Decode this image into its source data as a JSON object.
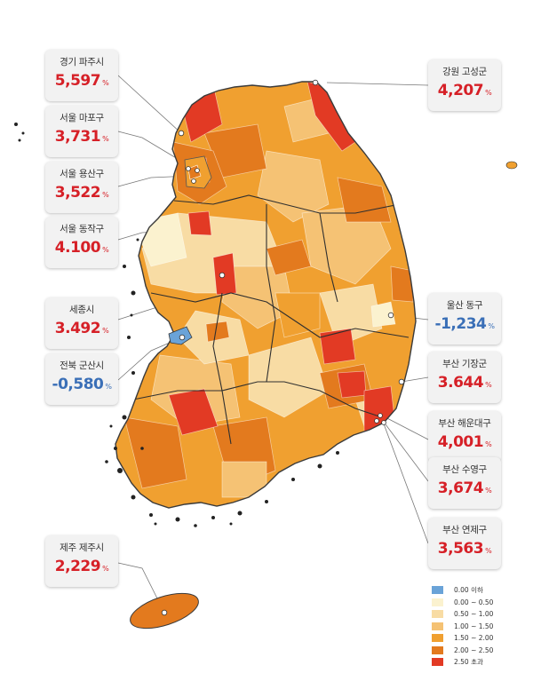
{
  "callouts": [
    {
      "name": "경기 파주시",
      "value": "5,597",
      "unit": "%",
      "color": "#d62027"
    },
    {
      "name": "서울 마포구",
      "value": "3,731",
      "unit": "%",
      "color": "#d62027"
    },
    {
      "name": "서울 용산구",
      "value": "3,522",
      "unit": "%",
      "color": "#d62027"
    },
    {
      "name": "서울 동작구",
      "value": "4.100",
      "unit": "%",
      "color": "#d62027"
    },
    {
      "name": "세종시",
      "value": "3.492",
      "unit": "%",
      "color": "#d62027"
    },
    {
      "name": "전북 군산시",
      "value": "-0,580",
      "unit": "%",
      "color": "#3a6fb7"
    },
    {
      "name": "제주 제주시",
      "value": "2,229",
      "unit": "%",
      "color": "#d62027"
    },
    {
      "name": "강원 고성군",
      "value": "4,207",
      "unit": "%",
      "color": "#d62027"
    },
    {
      "name": "울산 동구",
      "value": "-1,234",
      "unit": "%",
      "color": "#3a6fb7"
    },
    {
      "name": "부산 기장군",
      "value": "3.644",
      "unit": "%",
      "color": "#d62027"
    },
    {
      "name": "부산 해운대구",
      "value": "4,001",
      "unit": "%",
      "color": "#d62027"
    },
    {
      "name": "부산 수영구",
      "value": "3,674",
      "unit": "%",
      "color": "#d62027"
    },
    {
      "name": "부산 연제구",
      "value": "3,563",
      "unit": "%",
      "color": "#d62027"
    }
  ],
  "legend": [
    {
      "label": "0.00 이하",
      "color": "#6aa3d8"
    },
    {
      "label": "0.00 ~ 0.50",
      "color": "#fbf2cf"
    },
    {
      "label": "0.50 ~ 1.00",
      "color": "#f8dca4"
    },
    {
      "label": "1.00 ~ 1.50",
      "color": "#f5c274"
    },
    {
      "label": "1.50 ~ 2.00",
      "color": "#f0a030"
    },
    {
      "label": "2.00 ~ 2.50",
      "color": "#e37a1e"
    },
    {
      "label": "2.50 초과",
      "color": "#e23a24"
    }
  ]
}
